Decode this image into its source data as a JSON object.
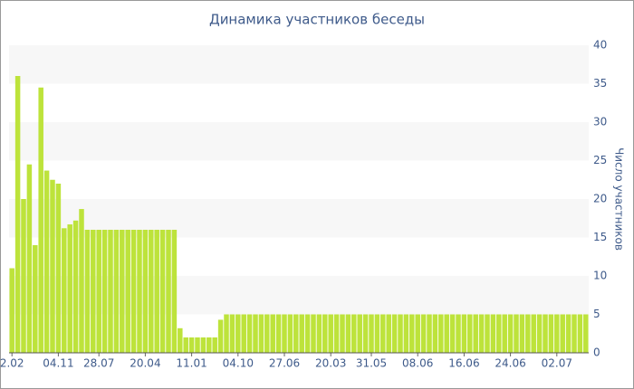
{
  "chart_data": {
    "type": "bar",
    "title": "Динамика участников беседы",
    "y_label": "Число участников",
    "categories": [
      "2.02",
      null,
      null,
      null,
      null,
      null,
      null,
      null,
      "04.11",
      null,
      null,
      null,
      null,
      null,
      null,
      "28.07",
      null,
      null,
      null,
      null,
      null,
      null,
      null,
      "20.04",
      null,
      null,
      null,
      null,
      null,
      null,
      null,
      "11.01",
      null,
      null,
      null,
      null,
      null,
      null,
      null,
      "04.10",
      null,
      null,
      null,
      null,
      null,
      null,
      null,
      "27.06",
      null,
      null,
      null,
      null,
      null,
      null,
      null,
      "20.03",
      null,
      null,
      null,
      null,
      null,
      null,
      "31.05",
      null,
      null,
      null,
      null,
      null,
      null,
      null,
      "08.06",
      null,
      null,
      null,
      null,
      null,
      null,
      null,
      "16.06",
      null,
      null,
      null,
      null,
      null,
      null,
      null,
      "24.06",
      null,
      null,
      null,
      null,
      null,
      null,
      null,
      "02.07",
      null,
      null,
      null,
      null,
      null
    ],
    "values": [
      11,
      36,
      20,
      24.5,
      14,
      34.5,
      23.7,
      22.5,
      22,
      16.2,
      16.7,
      17.2,
      18.7,
      16,
      16,
      16,
      16,
      16,
      16,
      16,
      16,
      16,
      16,
      16,
      16,
      16,
      16,
      16,
      16,
      3.2,
      2,
      2,
      2,
      2,
      2,
      2,
      4.3,
      5,
      5,
      5,
      5,
      5,
      5,
      5,
      5,
      5,
      5,
      5,
      5,
      5,
      5,
      5,
      5,
      5,
      5,
      5,
      5,
      5,
      5,
      5,
      5,
      5,
      5,
      5,
      5,
      5,
      5,
      5,
      5,
      5,
      5,
      5,
      5,
      5,
      5,
      5,
      5,
      5,
      5,
      5,
      5,
      5,
      5,
      5,
      5,
      5,
      5,
      5,
      5,
      5,
      5,
      5,
      5,
      5,
      5,
      5,
      5,
      5,
      5,
      5
    ],
    "color": "#bde33b",
    "ylim": [
      0,
      40
    ],
    "yticks": [
      0,
      5,
      10,
      15,
      20,
      25,
      30,
      35,
      40
    ],
    "grid": true
  }
}
